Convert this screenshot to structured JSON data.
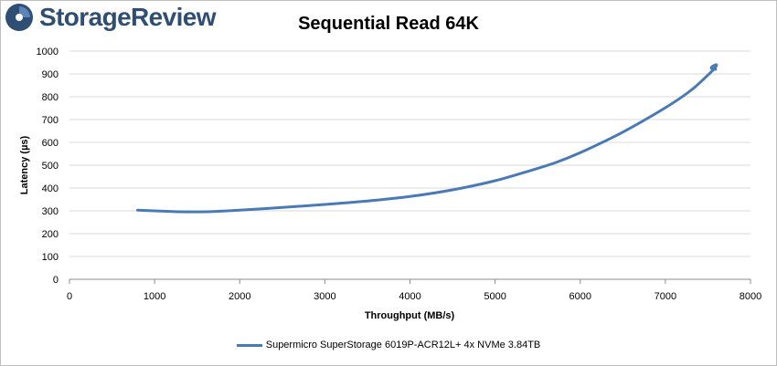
{
  "brand": {
    "name": "StorageReview"
  },
  "chart_data": {
    "type": "line",
    "title": "Sequential Read 64K",
    "xlabel": "Throughput (MB/s)",
    "ylabel": "Latency (µs)",
    "xlim": [
      0,
      8000
    ],
    "ylim": [
      0,
      1000
    ],
    "x_ticks": [
      0,
      1000,
      2000,
      3000,
      4000,
      5000,
      6000,
      7000,
      8000
    ],
    "y_ticks": [
      0,
      100,
      200,
      300,
      400,
      500,
      600,
      700,
      800,
      900,
      1000
    ],
    "grid": true,
    "legend_position": "bottom",
    "series": [
      {
        "name": "Supermicro SuperStorage 6019P-ACR12L+ 4x NVMe 3.84TB",
        "color": "#4a7ab5",
        "x": [
          800,
          1000,
          1300,
          1600,
          2000,
          2500,
          3000,
          3500,
          4000,
          4500,
          5000,
          5400,
          5700,
          6000,
          6500,
          7000,
          7300,
          7500,
          7580,
          7600,
          7560,
          7540,
          7590
        ],
        "y": [
          303,
          300,
          296,
          296,
          303,
          315,
          328,
          343,
          363,
          392,
          432,
          475,
          510,
          555,
          645,
          752,
          828,
          895,
          925,
          940,
          935,
          925,
          920
        ]
      }
    ]
  }
}
